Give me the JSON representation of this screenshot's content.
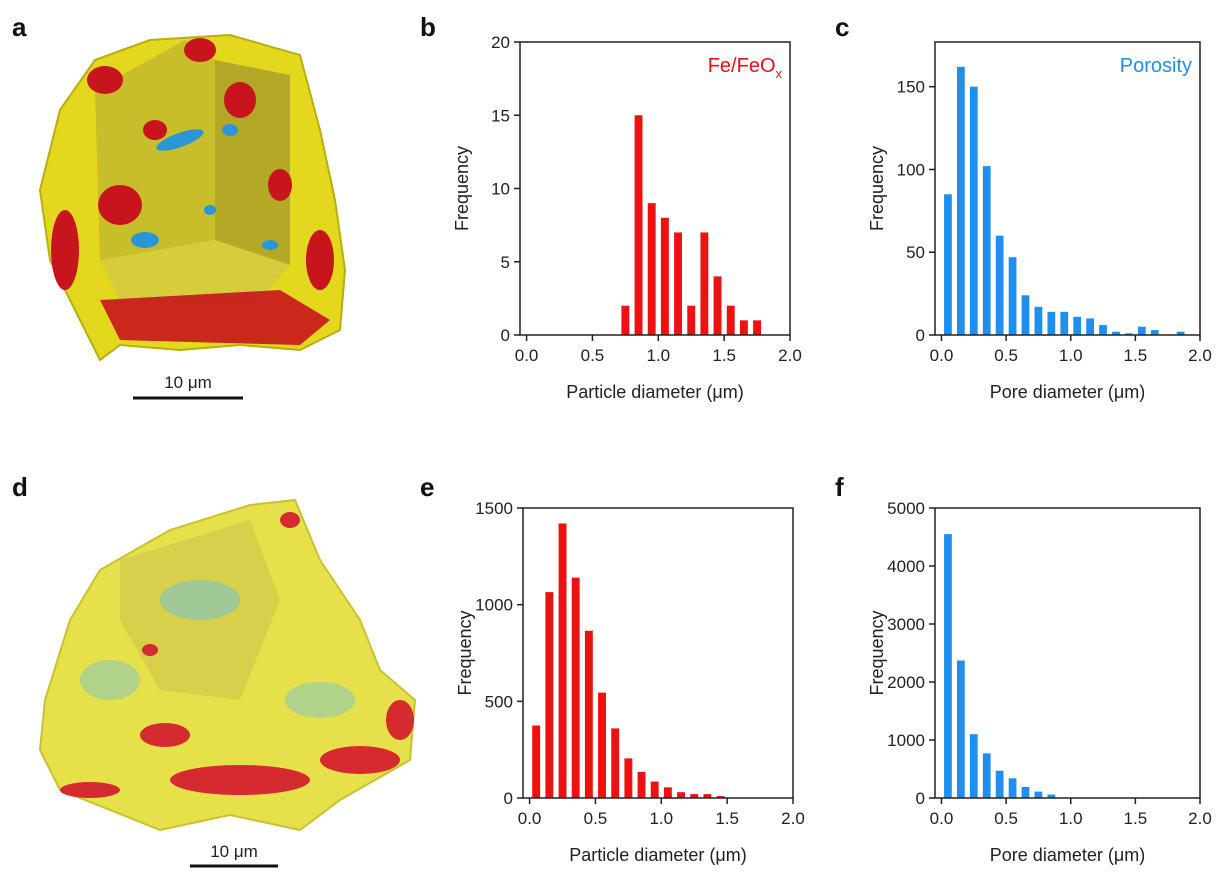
{
  "images": [
    {
      "panel": "a",
      "scale_bar": "10 μm"
    },
    {
      "panel": "d",
      "scale_bar": "10 μm"
    }
  ],
  "chart_data": [
    {
      "type": "histogram",
      "panel": "b",
      "xlabel": "Particle diameter (μm)",
      "ylabel": "Frequency",
      "annotation": {
        "text": "Fe/FeO",
        "sub": "x",
        "color": "#e8101a"
      },
      "bins": [
        0.7,
        0.8,
        0.9,
        1.0,
        1.1,
        1.2,
        1.3,
        1.4,
        1.5,
        1.6,
        1.7,
        1.8
      ],
      "values": [
        2,
        15,
        9,
        8,
        7,
        2,
        7,
        4,
        2,
        1,
        1
      ],
      "color": "#ee1111",
      "xlim": [
        -0.05,
        2.0
      ],
      "ylim": [
        0,
        20
      ],
      "xticks": [
        {
          "value": 0,
          "label": "0.0"
        },
        {
          "value": 0.5,
          "label": "0.5"
        },
        {
          "value": 1,
          "label": "1.0"
        },
        {
          "value": 1.5,
          "label": "1.5"
        },
        {
          "value": 2,
          "label": "2.0"
        }
      ],
      "yticks": [
        0,
        5,
        10,
        15,
        20
      ]
    },
    {
      "type": "histogram",
      "panel": "c",
      "xlabel": "Pore diameter (μm)",
      "ylabel": "Frequency",
      "annotation": {
        "text": "Porosity",
        "color": "#1e8fef"
      },
      "bins": [
        0,
        0.1,
        0.2,
        0.3,
        0.4,
        0.5,
        0.6,
        0.7,
        0.8,
        0.9,
        1.0,
        1.1,
        1.2,
        1.3,
        1.4,
        1.5,
        1.6,
        1.7,
        1.8,
        1.9
      ],
      "values": [
        85,
        162,
        150,
        102,
        60,
        47,
        24,
        17,
        14,
        14,
        11,
        10,
        6,
        2,
        1,
        5,
        3,
        0,
        2
      ],
      "color": "#1e8fef",
      "xlim": [
        -0.05,
        2.0
      ],
      "ylim": [
        0,
        177
      ],
      "xticks": [
        {
          "value": 0,
          "label": "0.0"
        },
        {
          "value": 0.5,
          "label": "0.5"
        },
        {
          "value": 1,
          "label": "1.0"
        },
        {
          "value": 1.5,
          "label": "1.5"
        },
        {
          "value": 2,
          "label": "2.0"
        }
      ],
      "yticks": [
        0,
        50,
        100,
        150
      ]
    },
    {
      "type": "histogram",
      "panel": "e",
      "xlabel": "Particle diameter (μm)",
      "ylabel": "Frequency",
      "bins": [
        0,
        0.1,
        0.2,
        0.3,
        0.4,
        0.5,
        0.6,
        0.7,
        0.8,
        0.9,
        1.0,
        1.1,
        1.2,
        1.3,
        1.4,
        1.5
      ],
      "values": [
        375,
        1065,
        1420,
        1140,
        865,
        545,
        360,
        205,
        135,
        85,
        55,
        30,
        20,
        20,
        10
      ],
      "color": "#ee1111",
      "xlim": [
        -0.05,
        2.0
      ],
      "ylim": [
        0,
        1500
      ],
      "xticks": [
        {
          "value": 0,
          "label": "0.0"
        },
        {
          "value": 0.5,
          "label": "0.5"
        },
        {
          "value": 1,
          "label": "1.0"
        },
        {
          "value": 1.5,
          "label": "1.5"
        },
        {
          "value": 2,
          "label": "2.0"
        }
      ],
      "yticks": [
        0,
        500,
        1000,
        1500
      ]
    },
    {
      "type": "histogram",
      "panel": "f",
      "xlabel": "Pore diameter (μm)",
      "ylabel": "Frequency",
      "bins": [
        0,
        0.1,
        0.2,
        0.3,
        0.4,
        0.5,
        0.6,
        0.7,
        0.8,
        0.9
      ],
      "values": [
        4550,
        2370,
        1100,
        770,
        470,
        340,
        190,
        110,
        60
      ],
      "color": "#1e8fef",
      "xlim": [
        -0.05,
        2.0
      ],
      "ylim": [
        0,
        5000
      ],
      "xticks": [
        {
          "value": 0,
          "label": "0.0"
        },
        {
          "value": 0.5,
          "label": "0.5"
        },
        {
          "value": 1,
          "label": "1.0"
        },
        {
          "value": 1.5,
          "label": "1.5"
        },
        {
          "value": 2,
          "label": "2.0"
        }
      ],
      "yticks": [
        0,
        1000,
        2000,
        3000,
        4000,
        5000
      ]
    }
  ]
}
